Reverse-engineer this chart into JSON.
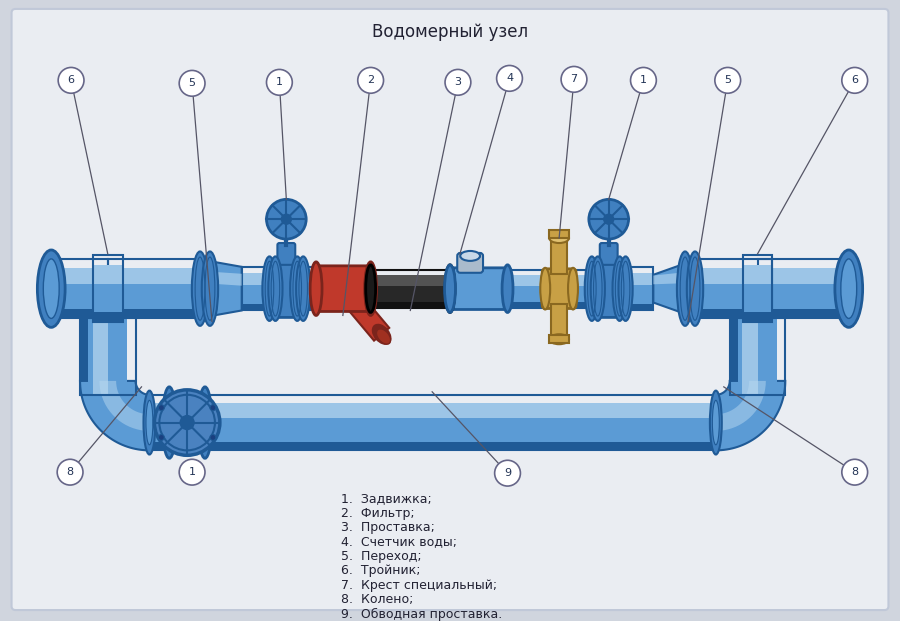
{
  "title": "Водомерный узел",
  "title_fontsize": 12,
  "bg_color": "#d0d5de",
  "panel_color": "#e8eaef",
  "pipe_blue": "#5b9bd5",
  "pipe_blue_dark": "#1f5a96",
  "pipe_blue_mid": "#4080c0",
  "pipe_blue_light": "#90bfe0",
  "pipe_blue_highlight": "#b8d8f0",
  "filter_red": "#c0392b",
  "filter_red_dark": "#7b241c",
  "filter_red_light": "#e05050",
  "spacer_dark": "#282828",
  "spacer_mid": "#484848",
  "brass": "#c8a045",
  "brass_dark": "#8a6820",
  "brass_light": "#e0c070",
  "legend_items": [
    "1.  Задвижка;",
    "2.  Фильтр;",
    "3.  Проставка;",
    "4.  Счетчик воды;",
    "5.  Переход;",
    "6.  Тройник;",
    "7.  Крест специальный;",
    "8.  Колено;",
    "9.  Обводная проставка."
  ]
}
